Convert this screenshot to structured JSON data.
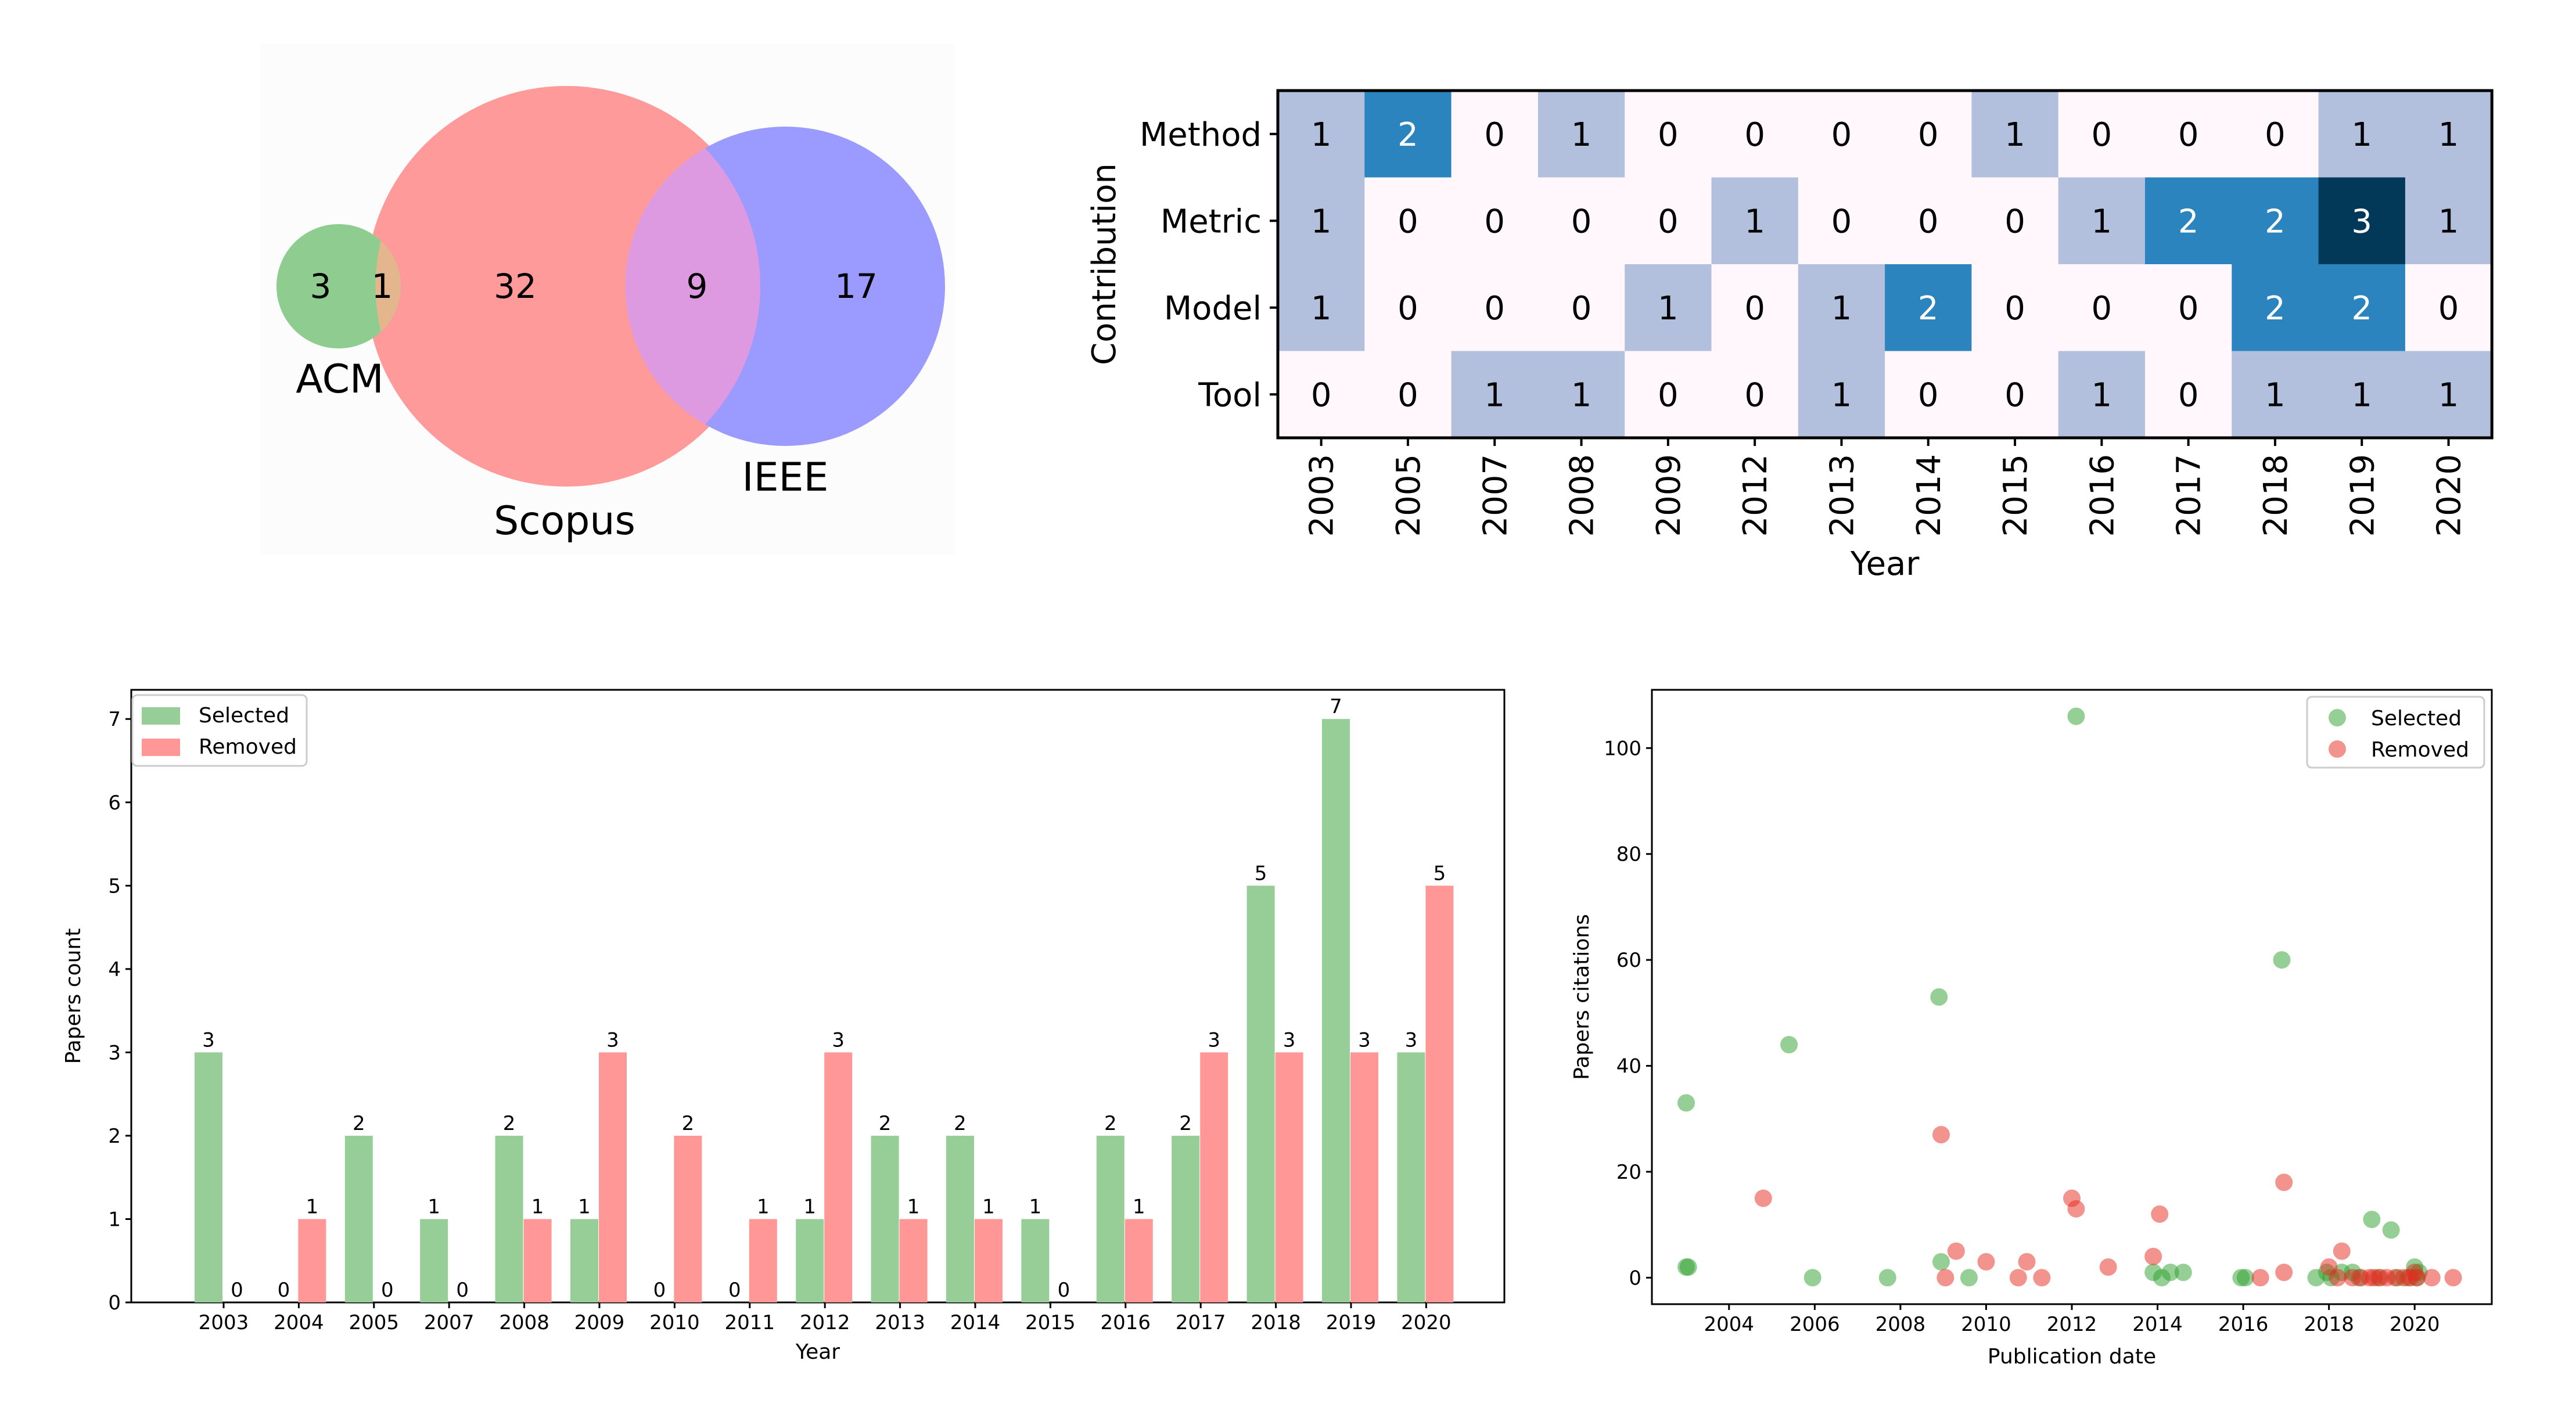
{
  "chart_data": [
    {
      "type": "venn",
      "sets": [
        {
          "name": "ACM",
          "color": "#8fcc8f",
          "only": 3
        },
        {
          "name": "Scopus",
          "color": "#ff9a9a",
          "only": 32
        },
        {
          "name": "IEEE",
          "color": "#9a9aff",
          "only": 17
        }
      ],
      "intersections": [
        {
          "sets": [
            "ACM",
            "Scopus"
          ],
          "value": 1,
          "color": "#e3b68e"
        },
        {
          "sets": [
            "Scopus",
            "IEEE"
          ],
          "value": 9,
          "color": "#de9ae0"
        }
      ]
    },
    {
      "type": "heatmap",
      "xlabel": "Year",
      "ylabel": "Contribution",
      "x": [
        "2003",
        "2005",
        "2007",
        "2008",
        "2009",
        "2012",
        "2013",
        "2014",
        "2015",
        "2016",
        "2017",
        "2018",
        "2019",
        "2020"
      ],
      "y": [
        "Method",
        "Metric",
        "Model",
        "Tool"
      ],
      "values": [
        [
          1,
          2,
          0,
          1,
          0,
          0,
          0,
          0,
          1,
          0,
          0,
          0,
          1,
          1
        ],
        [
          1,
          0,
          0,
          0,
          0,
          1,
          0,
          0,
          0,
          1,
          2,
          2,
          3,
          1
        ],
        [
          1,
          0,
          0,
          0,
          1,
          0,
          1,
          2,
          0,
          0,
          0,
          2,
          2,
          0
        ],
        [
          0,
          0,
          1,
          1,
          0,
          0,
          1,
          0,
          0,
          1,
          0,
          1,
          1,
          1
        ]
      ],
      "colors": {
        "0": "#fff7fb",
        "1": "#b3c0dd",
        "2": "#2b84be",
        "3": "#023858"
      }
    },
    {
      "type": "bar",
      "xlabel": "Year",
      "ylabel": "Papers count",
      "ylim": [
        0,
        7.35
      ],
      "yticks": [
        0,
        1,
        2,
        3,
        4,
        5,
        6,
        7
      ],
      "legend": "top-left",
      "categories": [
        "2003",
        "2004",
        "2005",
        "2007",
        "2008",
        "2009",
        "2010",
        "2011",
        "2012",
        "2013",
        "2014",
        "2015",
        "2016",
        "2017",
        "2018",
        "2019",
        "2020"
      ],
      "series": [
        {
          "name": "Selected",
          "color": "#97cd97",
          "values": [
            3,
            0,
            2,
            1,
            2,
            1,
            0,
            0,
            1,
            2,
            2,
            1,
            2,
            2,
            5,
            7,
            3
          ]
        },
        {
          "name": "Removed",
          "color": "#ff9797",
          "values": [
            0,
            1,
            0,
            0,
            1,
            3,
            2,
            1,
            3,
            1,
            1,
            0,
            1,
            3,
            3,
            3,
            5
          ]
        }
      ]
    },
    {
      "type": "scatter",
      "xlabel": "Publication date",
      "ylabel": "Papers citations",
      "xlim": [
        2002.2,
        2021.8
      ],
      "ylim": [
        -5,
        111
      ],
      "xticks": [
        2004,
        2006,
        2008,
        2010,
        2012,
        2014,
        2016,
        2018,
        2020
      ],
      "yticks": [
        0,
        20,
        40,
        60,
        80,
        100
      ],
      "legend": "top-right",
      "series": [
        {
          "name": "Selected",
          "color": "#2ca02c",
          "points": [
            [
              2003.0,
              33
            ],
            [
              2003.0,
              2
            ],
            [
              2003.05,
              2
            ],
            [
              2005.4,
              44
            ],
            [
              2005.95,
              0
            ],
            [
              2007.7,
              0
            ],
            [
              2008.9,
              53
            ],
            [
              2008.95,
              3
            ],
            [
              2009.6,
              0
            ],
            [
              2012.1,
              106
            ],
            [
              2013.9,
              1
            ],
            [
              2014.1,
              0
            ],
            [
              2014.3,
              1
            ],
            [
              2014.6,
              1
            ],
            [
              2015.95,
              0
            ],
            [
              2016.05,
              0
            ],
            [
              2016.9,
              60
            ],
            [
              2017.7,
              0
            ],
            [
              2017.95,
              1
            ],
            [
              2018.05,
              0
            ],
            [
              2018.3,
              1
            ],
            [
              2018.55,
              1
            ],
            [
              2018.7,
              0
            ],
            [
              2019.0,
              11
            ],
            [
              2019.15,
              0
            ],
            [
              2019.45,
              9
            ],
            [
              2019.6,
              0
            ],
            [
              2019.85,
              0
            ],
            [
              2020.0,
              2
            ],
            [
              2020.05,
              0
            ],
            [
              2020.1,
              1
            ]
          ]
        },
        {
          "name": "Removed",
          "color": "#e8281e",
          "points": [
            [
              2004.8,
              15
            ],
            [
              2008.95,
              27
            ],
            [
              2009.05,
              0
            ],
            [
              2009.3,
              5
            ],
            [
              2010.0,
              3
            ],
            [
              2010.75,
              0
            ],
            [
              2010.95,
              3
            ],
            [
              2011.3,
              0
            ],
            [
              2012.0,
              15
            ],
            [
              2012.1,
              13
            ],
            [
              2012.85,
              2
            ],
            [
              2013.9,
              4
            ],
            [
              2014.05,
              12
            ],
            [
              2016.4,
              0
            ],
            [
              2016.95,
              18
            ],
            [
              2016.95,
              1
            ],
            [
              2018.0,
              2
            ],
            [
              2018.2,
              0
            ],
            [
              2018.3,
              5
            ],
            [
              2018.55,
              0
            ],
            [
              2018.75,
              0
            ],
            [
              2018.95,
              0
            ],
            [
              2019.05,
              0
            ],
            [
              2019.2,
              0
            ],
            [
              2019.35,
              0
            ],
            [
              2019.55,
              0
            ],
            [
              2019.75,
              0
            ],
            [
              2019.9,
              0
            ],
            [
              2020.0,
              1
            ],
            [
              2020.05,
              0
            ],
            [
              2020.4,
              0
            ],
            [
              2020.9,
              0
            ]
          ]
        }
      ]
    }
  ]
}
